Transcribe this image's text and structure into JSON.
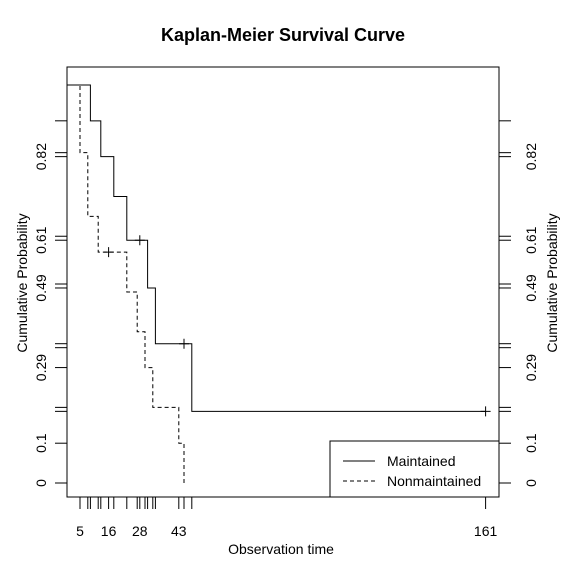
{
  "chart_data": {
    "type": "line",
    "title": "Kaplan-Meier Survival Curve",
    "xlabel": "Observation time",
    "ylabel": "Cumulative Probability",
    "ylabel_right": "Cumulative Probability",
    "xlim": [
      0,
      165
    ],
    "ylim": [
      0,
      1
    ],
    "x_tick_labels": [
      5,
      16,
      28,
      43,
      161
    ],
    "x_minor_ticks": [
      5,
      8,
      9,
      12,
      13,
      16,
      18,
      23,
      27,
      28,
      30,
      31,
      33,
      34,
      43,
      45,
      48,
      161
    ],
    "y_tick_labels": [
      0,
      0.1,
      0.29,
      0.49,
      0.61,
      0.82
    ],
    "y_tick_marks": [
      0,
      0.1,
      0.18,
      0.19,
      0.29,
      0.34,
      0.35,
      0.49,
      0.5,
      0.61,
      0.62,
      0.82,
      0.83,
      0.91
    ],
    "legend": {
      "placement": "bottom-right",
      "entries": [
        {
          "label": "Maintained",
          "dash": "solid"
        },
        {
          "label": "Nonmaintained",
          "dash": "dashed"
        }
      ]
    },
    "series": [
      {
        "name": "Maintained",
        "dash": "solid",
        "steps": [
          [
            0,
            1.0
          ],
          [
            9,
            0.91
          ],
          [
            13,
            0.82
          ],
          [
            18,
            0.72
          ],
          [
            23,
            0.61
          ],
          [
            31,
            0.49
          ],
          [
            34,
            0.35
          ],
          [
            48,
            0.18
          ],
          [
            161,
            0.18
          ]
        ],
        "censored": [
          [
            28,
            0.61
          ],
          [
            45,
            0.35
          ],
          [
            161,
            0.18
          ]
        ]
      },
      {
        "name": "Nonmaintained",
        "dash": "dashed",
        "steps": [
          [
            0,
            1.0
          ],
          [
            5,
            0.83
          ],
          [
            8,
            0.67
          ],
          [
            12,
            0.58
          ],
          [
            23,
            0.48
          ],
          [
            27,
            0.38
          ],
          [
            30,
            0.29
          ],
          [
            33,
            0.19
          ],
          [
            43,
            0.1
          ],
          [
            45,
            0.0
          ]
        ],
        "censored": [
          [
            16,
            0.58
          ]
        ]
      }
    ]
  }
}
